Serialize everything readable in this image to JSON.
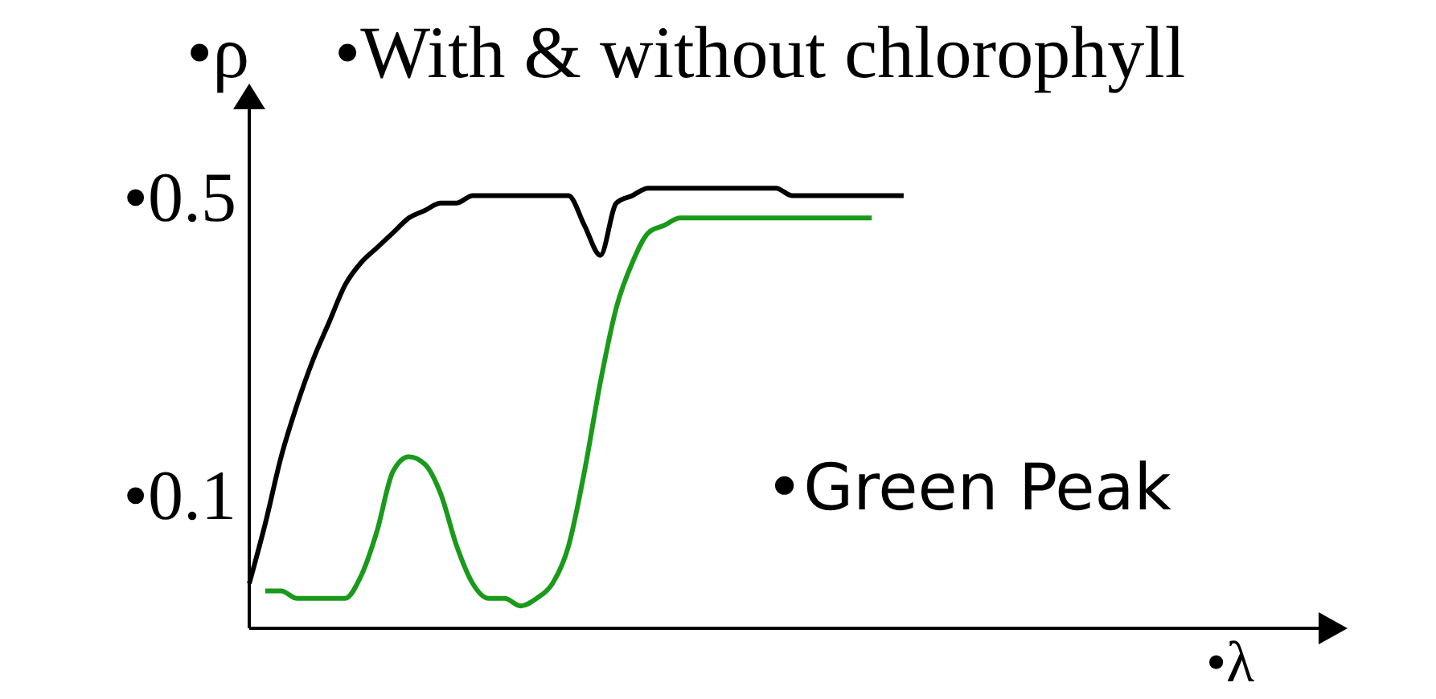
{
  "chart_data": {
    "type": "line",
    "title": "•With & without chlorophyll",
    "xlabel": "•λ",
    "ylabel": "•ρ",
    "annotations": [
      "•Green Peak"
    ],
    "categories": [
      null,
      null,
      null,
      null,
      null,
      null,
      null,
      null,
      null,
      null,
      null,
      null,
      null,
      null,
      null,
      null,
      null,
      null,
      null,
      null,
      null,
      null,
      null,
      null,
      null,
      null,
      null,
      null,
      null,
      null,
      null,
      null,
      null,
      null,
      null,
      null,
      null,
      null,
      null,
      null,
      null,
      null,
      null,
      null,
      null,
      null,
      null,
      null,
      null,
      null,
      null,
      null,
      null,
      null,
      null,
      null,
      null,
      null,
      null,
      null,
      null,
      null,
      null,
      null,
      null,
      null,
      null,
      null
    ],
    "series": [
      {
        "color": "#000000",
        "values": [
          -0.02,
          0.06,
          0.15,
          0.22,
          0.28,
          0.33,
          0.38,
          0.41,
          0.43,
          0.45,
          0.47,
          0.48,
          0.49,
          0.49,
          0.5,
          0.5,
          0.5,
          0.5,
          0.5,
          0.5,
          0.5,
          0.46,
          0.42,
          0.49,
          0.5,
          0.51,
          0.51,
          0.51,
          0.51,
          0.51,
          0.51,
          0.51,
          0.51,
          0.51,
          0.5,
          0.5,
          0.5,
          0.5,
          0.5,
          0.5,
          0.5,
          0.5,
          null,
          null,
          null,
          null,
          null,
          null,
          null,
          null,
          null,
          null,
          null,
          null,
          null,
          null,
          null,
          null,
          null,
          null,
          null,
          null,
          null,
          null,
          null,
          null,
          null,
          null
        ]
      },
      {
        "color": "#1a9a1a",
        "values": [
          null,
          -0.03,
          -0.03,
          -0.04,
          -0.04,
          -0.04,
          -0.04,
          -0.01,
          0.05,
          0.13,
          0.15,
          0.14,
          0.1,
          0.03,
          -0.02,
          -0.04,
          -0.04,
          -0.05,
          -0.04,
          -0.02,
          0.03,
          0.13,
          0.25,
          0.35,
          0.41,
          0.45,
          0.46,
          0.47,
          0.47,
          0.47,
          0.47,
          0.47,
          0.47,
          0.47,
          0.47,
          0.47,
          0.47,
          0.47,
          0.47,
          0.47,
          null,
          null,
          null,
          null,
          null,
          null,
          null,
          null,
          null,
          null,
          null,
          null,
          null,
          null,
          null,
          null,
          null,
          null,
          null,
          null,
          null,
          null,
          null,
          null,
          null,
          null,
          null,
          null
        ]
      }
    ],
    "ylim": [
      -0.08,
      0.62
    ],
    "yticks": [
      {
        "value": 0.1,
        "label": "•0.1"
      },
      {
        "value": 0.5,
        "label": "•0.5"
      }
    ],
    "tick_labels": "y",
    "grid": false,
    "legend": false,
    "marker": "none",
    "line_style": "solid"
  }
}
